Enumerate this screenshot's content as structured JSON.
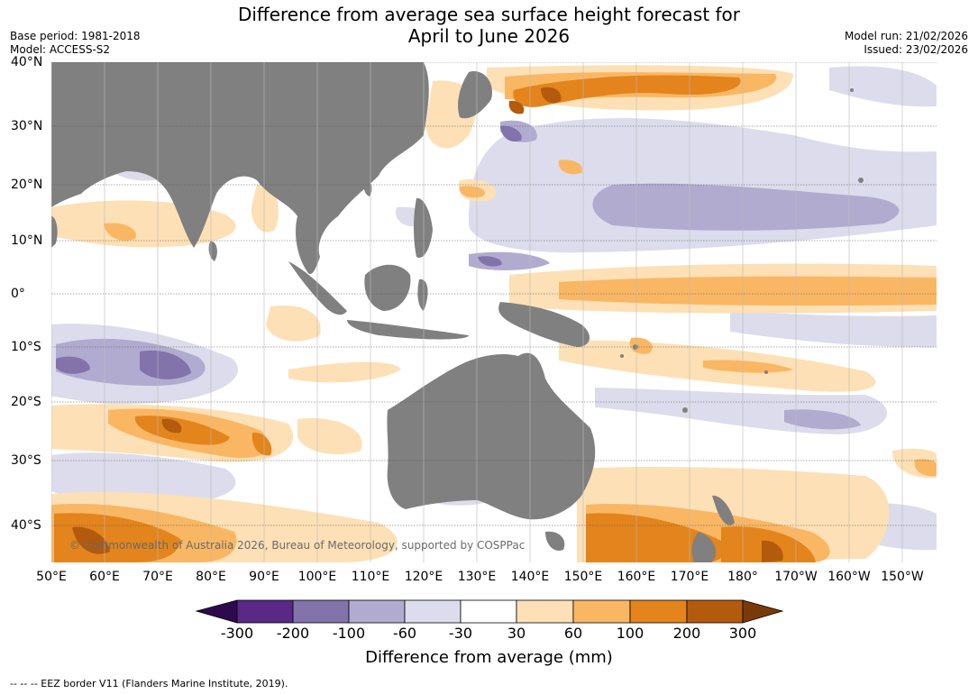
{
  "title": {
    "line1": "Difference from average sea surface height forecast for",
    "line2": "April to June 2026"
  },
  "meta": {
    "base_period": "Base period: 1981-2018",
    "model": "Model: ACCESS-S2",
    "model_run": "Model run: 21/02/2026",
    "issued": "Issued: 23/02/2026"
  },
  "axes": {
    "lat_labels": [
      "40°N",
      "30°N",
      "20°N",
      "10°N",
      "0°",
      "10°S",
      "20°S",
      "30°S",
      "40°S"
    ],
    "lon_labels": [
      "50°E",
      "60°E",
      "70°E",
      "80°E",
      "90°E",
      "100°E",
      "110°E",
      "120°E",
      "130°E",
      "140°E",
      "150°E",
      "160°E",
      "170°E",
      "180°",
      "170°W",
      "160°W",
      "150°W"
    ]
  },
  "colorbar": {
    "ticks": [
      "-300",
      "-200",
      "-100",
      "-60",
      "-30",
      "30",
      "60",
      "100",
      "200",
      "300"
    ],
    "colors": [
      "#2d0a4e",
      "#5a2887",
      "#8273aa",
      "#b1abd0",
      "#dcdcec",
      "#ffffff",
      "#fde0b5",
      "#f9b764",
      "#e3841c",
      "#b35a0c",
      "#7a3a08"
    ],
    "title": "Difference from average (mm)"
  },
  "copyright": "© Commonwealth of Australia 2026, Bureau of Meteorology, supported by COSPPac",
  "footer": "-- -- -- EEZ border V11 (Flanders Marine Institute, 2019).",
  "map_colors": {
    "land": "#808080",
    "ocean": "#ffffff",
    "grid": "#555555"
  }
}
